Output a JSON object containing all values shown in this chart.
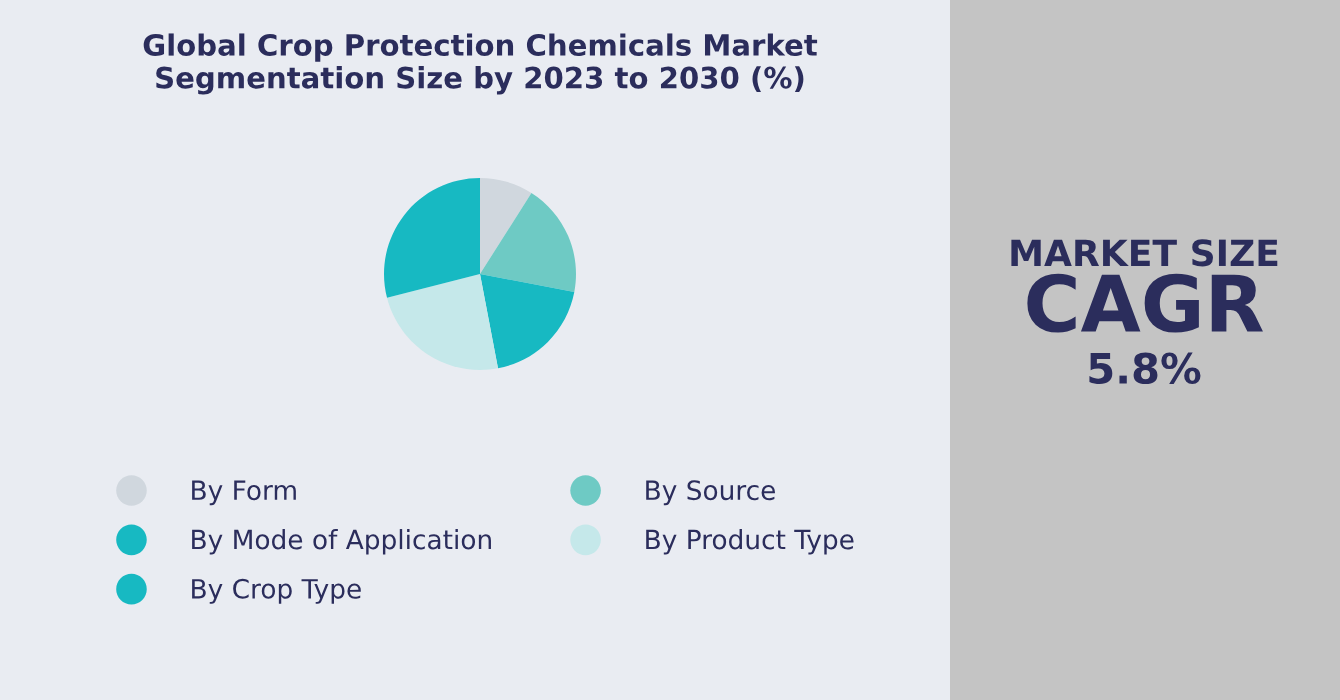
{
  "chart_data": {
    "type": "pie",
    "title": "Global Crop Protection Chemicals Market\nSegmentation Size by 2023 to 2030 (%)",
    "categories": [
      "By Form",
      "By Source",
      "By Mode of Application",
      "By Product Type",
      "By Crop Type"
    ],
    "values": [
      9,
      19,
      19,
      24,
      29
    ],
    "colors": [
      "#d0d7de",
      "#6ecac4",
      "#17b9c2",
      "#c5e8ea",
      "#17b9c2"
    ],
    "legend": "bottom",
    "annotations": [
      "MARKET SIZE",
      "CAGR",
      "5.8%"
    ]
  }
}
